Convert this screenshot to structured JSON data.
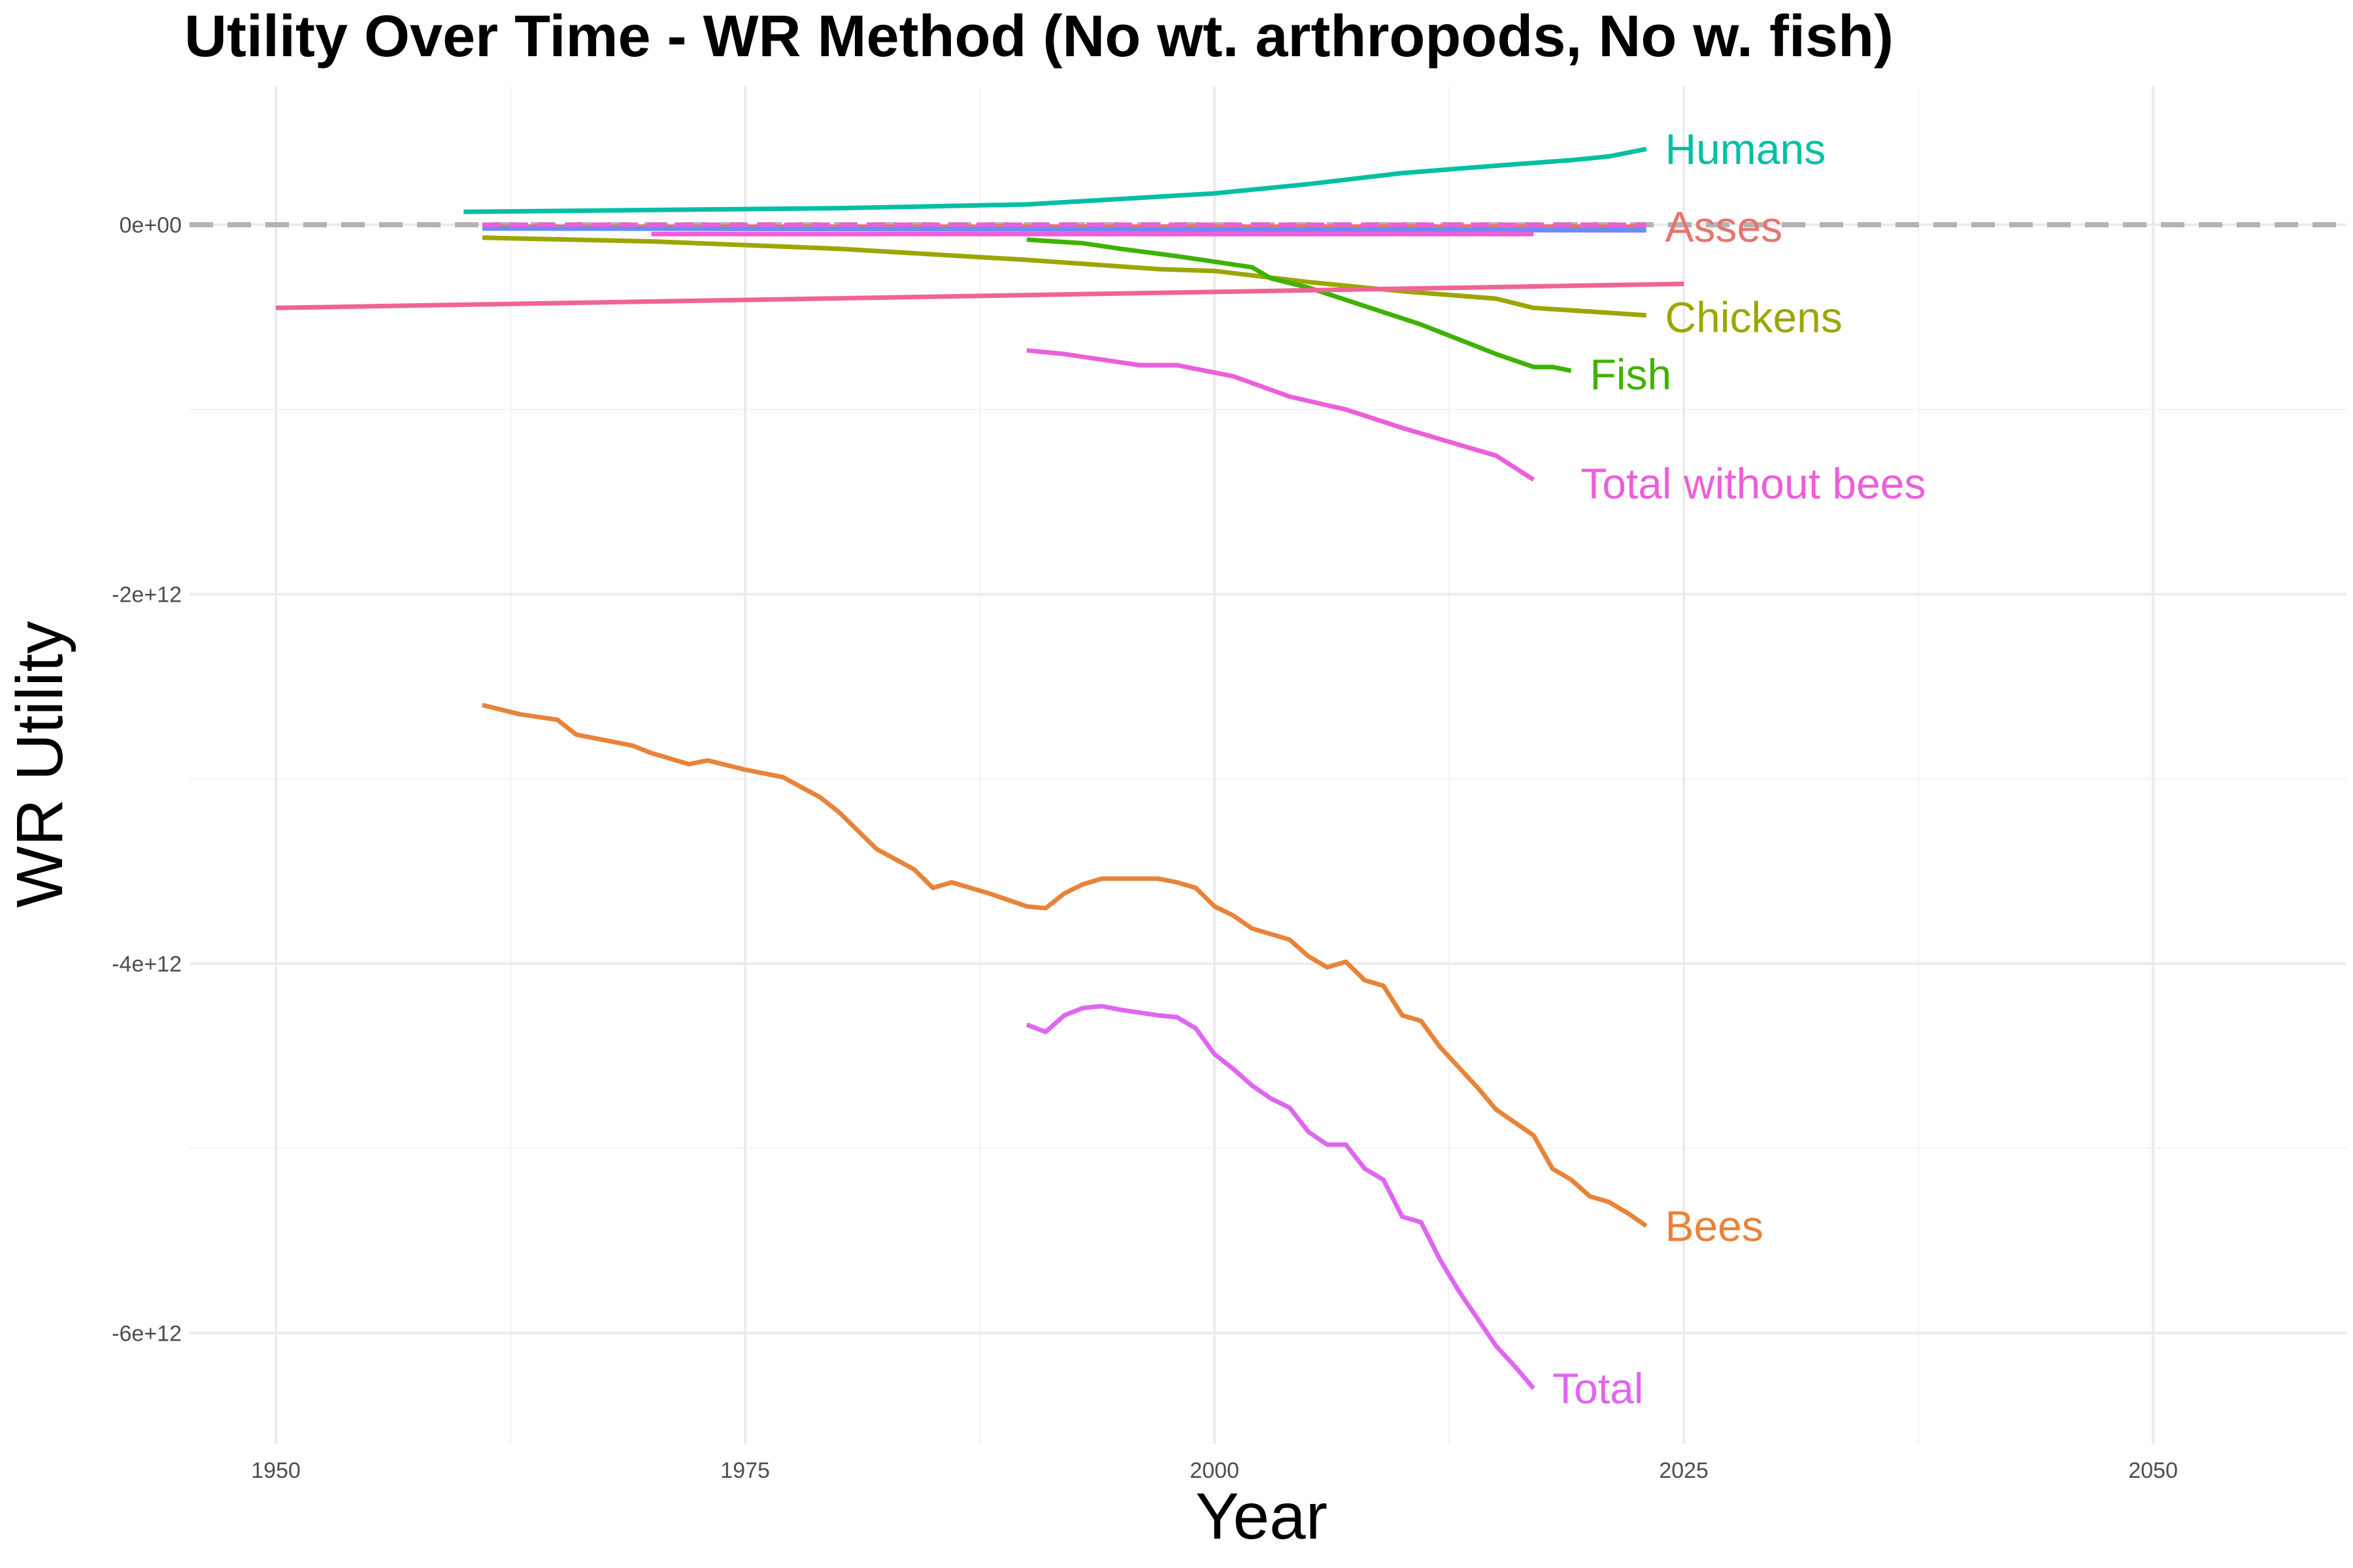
{
  "chart_data": {
    "type": "line",
    "title": "Utility Over Time - WR Method (No wt. arthropods, No w. fish)",
    "xlabel": "Year",
    "ylabel": "WR Utility",
    "xlim": [
      1945.4,
      2060.3
    ],
    "ylim": [
      -6600000000000.0,
      750000000000.0
    ],
    "x_ticks": [
      1950,
      1975,
      2000,
      2025,
      2050
    ],
    "x_tick_labels": [
      "1950",
      "1975",
      "2000",
      "2025",
      "2050"
    ],
    "y_ticks": [
      0,
      -2000000000000.0,
      -4000000000000.0,
      -6000000000000.0
    ],
    "y_tick_labels": [
      "0e+00",
      "-2e+12",
      "-4e+12",
      "-6e+12"
    ],
    "grid": true,
    "legend": "direct labels at line ends",
    "zero_line": {
      "value": 0,
      "style": "dashed",
      "color": "#b3b3b3"
    },
    "series": [
      {
        "name": "Humans",
        "color": "#00BFA5",
        "label_at": [
          2024,
          410000000000.0
        ],
        "x": [
          1960,
          1970,
          1980,
          1990,
          1995,
          2000,
          2005,
          2010,
          2015,
          2019,
          2020,
          2021,
          2022,
          2023
        ],
        "y": [
          70000000000.0,
          80000000000.0,
          90000000000.0,
          110000000000.0,
          140000000000.0,
          170000000000.0,
          220000000000.0,
          280000000000.0,
          320000000000.0,
          350000000000.0,
          360000000000.0,
          370000000000.0,
          390000000000.0,
          410000000000.0
        ]
      },
      {
        "name": "Asses",
        "color": "#E8736F",
        "label_at": [
          2024,
          -10000000000.0
        ],
        "x": [
          1961,
          2023
        ],
        "y": [
          -10000000000.0,
          -10000000000.0
        ]
      },
      {
        "name": "",
        "color": "#6B8BFA",
        "x": [
          1961,
          2023
        ],
        "y": [
          -20000000000.0,
          -30000000000.0
        ]
      },
      {
        "name": "",
        "color": "#EC5FD9",
        "dashed": true,
        "x": [
          1961,
          2023
        ],
        "y": [
          0.0,
          0.0
        ]
      },
      {
        "name": "",
        "color": "#EC5FD9",
        "x": [
          1970,
          2017
        ],
        "y": [
          -50000000000.0,
          -50000000000.0
        ]
      },
      {
        "name": "Chickens",
        "color": "#9CA600",
        "label_at": [
          2024,
          -500000000000.0
        ],
        "x": [
          1961,
          1970,
          1980,
          1990,
          1997,
          2000,
          2005,
          2010,
          2015,
          2017,
          2020,
          2023
        ],
        "y": [
          -70000000000.0,
          -90000000000.0,
          -130000000000.0,
          -190000000000.0,
          -240000000000.0,
          -250000000000.0,
          -310000000000.0,
          -360000000000.0,
          -400000000000.0,
          -450000000000.0,
          -470000000000.0,
          -490000000000.0
        ]
      },
      {
        "name": "Fish",
        "color": "#3FB200",
        "label_at": [
          2020,
          -810000000000.0
        ],
        "x": [
          1990,
          1993,
          1995,
          1998,
          2000,
          2002,
          2003,
          2005,
          2008,
          2011,
          2015,
          2017,
          2018,
          2019
        ],
        "y": [
          -80000000000.0,
          -100000000000.0,
          -130000000000.0,
          -170000000000.0,
          -200000000000.0,
          -230000000000.0,
          -290000000000.0,
          -340000000000.0,
          -440000000000.0,
          -540000000000.0,
          -700000000000.0,
          -770000000000.0,
          -770000000000.0,
          -790000000000.0
        ]
      },
      {
        "name": "",
        "color": "#F06494",
        "x": [
          1950,
          2025
        ],
        "y": [
          -450000000000.0,
          -320000000000.0
        ]
      },
      {
        "name": "Total without bees",
        "color": "#EC5FD9",
        "label_at": [
          2019.5,
          -1400000000000.0
        ],
        "x": [
          1990,
          1992,
          1996,
          1998,
          2001,
          2004,
          2007,
          2010,
          2013,
          2015,
          2017
        ],
        "y": [
          -680000000000.0,
          -700000000000.0,
          -760000000000.0,
          -760000000000.0,
          -820000000000.0,
          -930000000000.0,
          -1000000000000.0,
          -1100000000000.0,
          -1190000000000.0,
          -1250000000000.0,
          -1380000000000.0
        ]
      },
      {
        "name": "Bees",
        "color": "#E8833A",
        "label_at": [
          2024,
          -5420000000000.0
        ],
        "x": [
          1961,
          1963,
          1965,
          1966,
          1969,
          1970,
          1972,
          1973,
          1975,
          1977,
          1979,
          1980,
          1982,
          1984,
          1985,
          1986,
          1988,
          1990,
          1991,
          1992,
          1993,
          1994,
          1995,
          1996,
          1997,
          1998,
          1999,
          2000,
          2001,
          2002,
          2004,
          2005,
          2006,
          2007,
          2008,
          2009,
          2010,
          2011,
          2012,
          2013,
          2014,
          2015,
          2017,
          2018,
          2019,
          2020,
          2021,
          2022,
          2023
        ],
        "y": [
          -2600000000000.0,
          -2650000000000.0,
          -2680000000000.0,
          -2760000000000.0,
          -2820000000000.0,
          -2860000000000.0,
          -2920000000000.0,
          -2900000000000.0,
          -2950000000000.0,
          -2990000000000.0,
          -3100000000000.0,
          -3180000000000.0,
          -3380000000000.0,
          -3490000000000.0,
          -3590000000000.0,
          -3560000000000.0,
          -3620000000000.0,
          -3690000000000.0,
          -3700000000000.0,
          -3620000000000.0,
          -3570000000000.0,
          -3540000000000.0,
          -3540000000000.0,
          -3540000000000.0,
          -3540000000000.0,
          -3560000000000.0,
          -3590000000000.0,
          -3690000000000.0,
          -3740000000000.0,
          -3810000000000.0,
          -3870000000000.0,
          -3960000000000.0,
          -4020000000000.0,
          -3990000000000.0,
          -4090000000000.0,
          -4120000000000.0,
          -4280000000000.0,
          -4310000000000.0,
          -4450000000000.0,
          -4560000000000.0,
          -4670000000000.0,
          -4790000000000.0,
          -4930000000000.0,
          -5110000000000.0,
          -5170000000000.0,
          -5260000000000.0,
          -5290000000000.0,
          -5350000000000.0,
          -5420000000000.0
        ]
      },
      {
        "name": "Total",
        "color": "#DF66F0",
        "label_at": [
          2018,
          -6300000000000.0
        ],
        "x": [
          1990,
          1991,
          1992,
          1993,
          1994,
          1995,
          1997,
          1998,
          1999,
          2000,
          2001,
          2002,
          2003,
          2004,
          2005,
          2006,
          2007,
          2008,
          2009,
          2010,
          2011,
          2012,
          2013,
          2014,
          2015,
          2016,
          2017
        ],
        "y": [
          -4330000000000.0,
          -4370000000000.0,
          -4280000000000.0,
          -4240000000000.0,
          -4230000000000.0,
          -4250000000000.0,
          -4280000000000.0,
          -4290000000000.0,
          -4350000000000.0,
          -4490000000000.0,
          -4570000000000.0,
          -4660000000000.0,
          -4730000000000.0,
          -4780000000000.0,
          -4910000000000.0,
          -4980000000000.0,
          -4980000000000.0,
          -5110000000000.0,
          -5170000000000.0,
          -5370000000000.0,
          -5400000000000.0,
          -5600000000000.0,
          -5770000000000.0,
          -5920000000000.0,
          -6070000000000.0,
          -6180000000000.0,
          -6300000000000.0
        ]
      }
    ]
  }
}
